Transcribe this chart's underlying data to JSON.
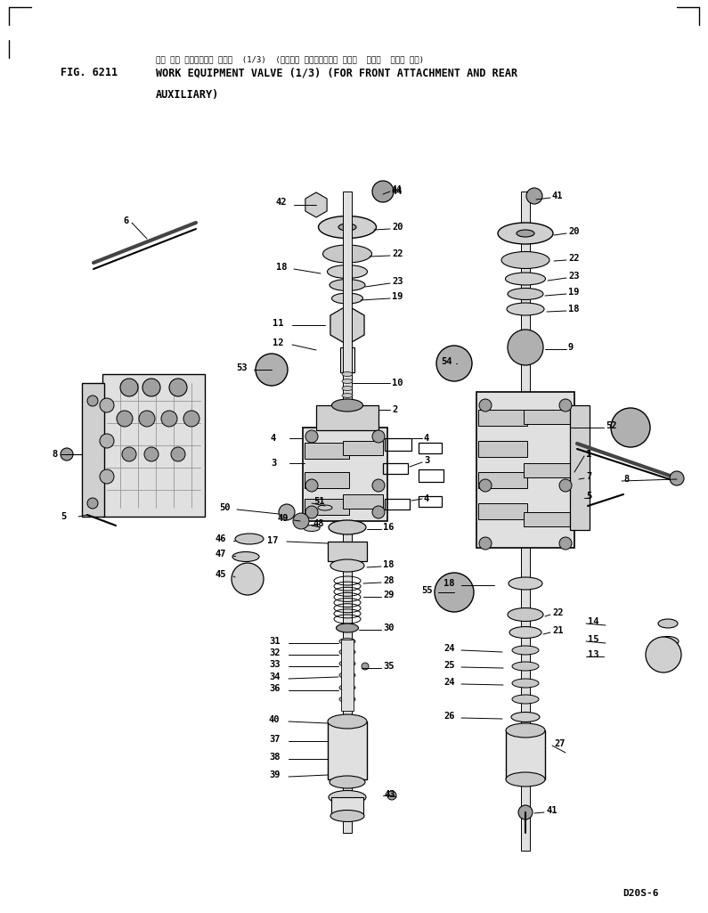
{
  "fig_label": "FIG. 6211",
  "title_jp": "サギ ヨキ コントロール バルブ  (1/3)  (フロント アタッチメント オヨビ  リヤー  ホジョ ヨウ)",
  "title_en1": "WORK EQUIPMENT VALVE (1/3) (FOR FRONT ATTACHMENT AND REAR",
  "title_en2": "AUXILIARY)",
  "model": "D20S-6",
  "bg_color": "#ffffff",
  "lc": "#000000",
  "tc": "#000000",
  "gray1": "#c8c8c8",
  "gray2": "#e0e0e0",
  "gray3": "#a0a0a0",
  "gray4": "#d0d0d0",
  "gray5": "#b0b0b0"
}
